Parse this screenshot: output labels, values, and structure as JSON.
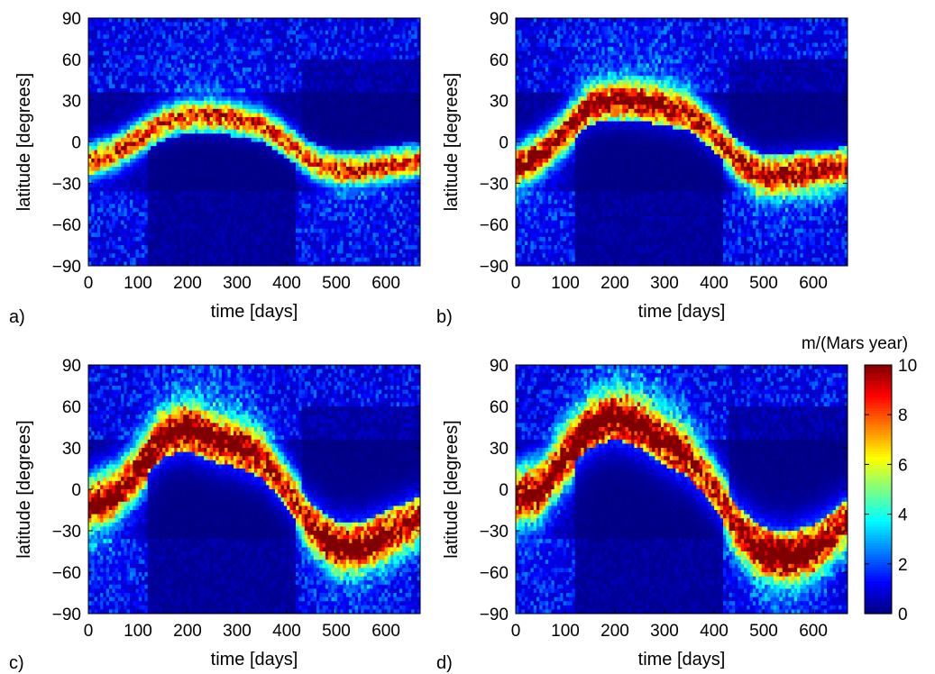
{
  "colors": {
    "cold": "#00008f",
    "mid": "#00ffff",
    "hot": "#800000",
    "axis": "#000000",
    "background": "#ffffff"
  },
  "colormap": "jet",
  "colorbar": {
    "label": "m/(Mars year)",
    "min": 0,
    "max": 10,
    "ticks": [
      "0",
      "2",
      "4",
      "6",
      "8",
      "10"
    ]
  },
  "chart_data": [
    {
      "type": "heatmap",
      "panel_label": "a)",
      "xlabel": "time [days]",
      "ylabel": "latitude [degrees]",
      "xlim": [
        0,
        669
      ],
      "ylim": [
        -90,
        90
      ],
      "xticks": [
        "0",
        "100",
        "200",
        "300",
        "400",
        "500",
        "600"
      ],
      "yticks": [
        "-90",
        "-60",
        "-30",
        "0",
        "30",
        "60",
        "90"
      ],
      "ridge": {
        "x": [
          0,
          50,
          100,
          150,
          200,
          250,
          300,
          350,
          400,
          450,
          500,
          550,
          600,
          669
        ],
        "y": [
          -14,
          -8,
          3,
          13,
          18,
          18,
          16,
          12,
          0,
          -14,
          -20,
          -20,
          -17,
          -14
        ]
      },
      "peak_value": 9,
      "band_width": 8,
      "arch_height": 5
    },
    {
      "type": "heatmap",
      "panel_label": "b)",
      "xlabel": "time [days]",
      "ylabel": "latitude [degrees]",
      "xlim": [
        0,
        669
      ],
      "ylim": [
        -90,
        90
      ],
      "xticks": [
        "0",
        "100",
        "200",
        "300",
        "400",
        "500",
        "600"
      ],
      "yticks": [
        "-90",
        "-60",
        "-30",
        "0",
        "30",
        "60",
        "90"
      ],
      "ridge": {
        "x": [
          0,
          50,
          100,
          150,
          200,
          250,
          300,
          350,
          400,
          450,
          500,
          550,
          600,
          669
        ],
        "y": [
          -18,
          -8,
          8,
          25,
          28,
          27,
          24,
          20,
          5,
          -14,
          -24,
          -22,
          -20,
          -18
        ]
      },
      "peak_value": 10,
      "band_width": 10,
      "arch_height": 10
    },
    {
      "type": "heatmap",
      "panel_label": "c)",
      "xlabel": "time [days]",
      "ylabel": "latitude [degrees]",
      "xlim": [
        0,
        669
      ],
      "ylim": [
        -90,
        90
      ],
      "xticks": [
        "0",
        "100",
        "200",
        "300",
        "400",
        "500",
        "600"
      ],
      "yticks": [
        "-90",
        "-60",
        "-30",
        "0",
        "30",
        "60",
        "90"
      ],
      "ridge": {
        "x": [
          0,
          50,
          100,
          150,
          200,
          250,
          300,
          350,
          400,
          450,
          500,
          550,
          600,
          669
        ],
        "y": [
          -10,
          -2,
          15,
          35,
          40,
          32,
          28,
          20,
          0,
          -25,
          -38,
          -38,
          -30,
          -20
        ]
      },
      "peak_value": 10,
      "band_width": 13,
      "arch_height": 18
    },
    {
      "type": "heatmap",
      "panel_label": "d)",
      "xlabel": "time [days]",
      "ylabel": "latitude [degrees]",
      "xlim": [
        0,
        669
      ],
      "ylim": [
        -90,
        90
      ],
      "xticks": [
        "0",
        "100",
        "200",
        "300",
        "400",
        "500",
        "600"
      ],
      "yticks": [
        "-90",
        "-60",
        "-30",
        "0",
        "30",
        "60",
        "90"
      ],
      "ridge": {
        "x": [
          0,
          50,
          100,
          150,
          200,
          250,
          300,
          350,
          400,
          450,
          500,
          550,
          600,
          669
        ],
        "y": [
          -4,
          2,
          25,
          42,
          48,
          42,
          30,
          20,
          0,
          -28,
          -42,
          -45,
          -40,
          -22
        ]
      },
      "peak_value": 10,
      "band_width": 14,
      "arch_height": 20
    }
  ]
}
